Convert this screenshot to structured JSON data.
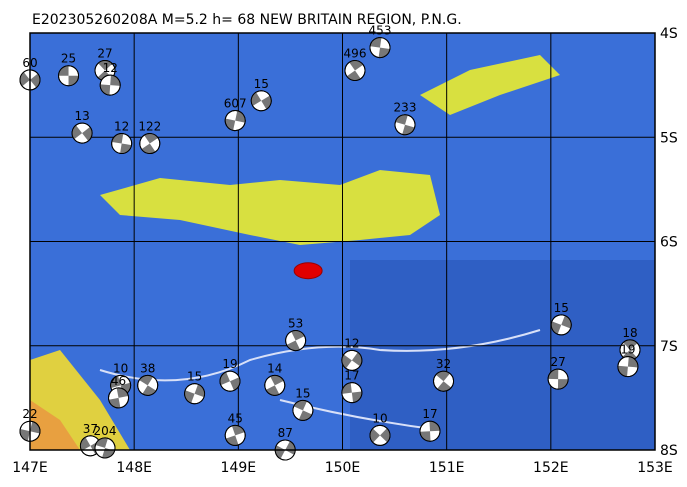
{
  "title": "E202305260208A  M=5.2  h= 68  NEW BRITAIN REGION, P.N.G.",
  "lon_ticks": [
    {
      "value": 147,
      "label": "147E"
    },
    {
      "value": 148,
      "label": "148E"
    },
    {
      "value": 149,
      "label": "149E"
    },
    {
      "value": 150,
      "label": "150E"
    },
    {
      "value": 151,
      "label": "151E"
    },
    {
      "value": 152,
      "label": "152E"
    },
    {
      "value": 153,
      "label": "153E"
    }
  ],
  "lat_ticks": [
    {
      "value": 4,
      "label": "4S"
    },
    {
      "value": 5,
      "label": "5S"
    },
    {
      "value": 6,
      "label": "6S"
    },
    {
      "value": 7,
      "label": "7S"
    },
    {
      "value": 8,
      "label": "8S"
    }
  ],
  "main_event": {
    "lon": 149.67,
    "lat": 6.28
  },
  "events": [
    {
      "lon": 147.37,
      "lat": 4.41,
      "label": "25"
    },
    {
      "lon": 147.72,
      "lat": 4.36,
      "label": "27"
    },
    {
      "lon": 147.77,
      "lat": 4.5,
      "label": "12"
    },
    {
      "lon": 147.0,
      "lat": 4.45,
      "label": "60"
    },
    {
      "lon": 150.36,
      "lat": 4.14,
      "label": "453"
    },
    {
      "lon": 150.12,
      "lat": 4.36,
      "label": "496"
    },
    {
      "lon": 148.97,
      "lat": 4.84,
      "label": "607"
    },
    {
      "lon": 149.22,
      "lat": 4.65,
      "label": "15"
    },
    {
      "lon": 150.6,
      "lat": 4.88,
      "label": "233"
    },
    {
      "lon": 149.35,
      "lat": 7.38,
      "label": "14"
    },
    {
      "lon": 148.58,
      "lat": 7.46,
      "label": "15"
    },
    {
      "lon": 148.92,
      "lat": 7.34,
      "label": "19"
    },
    {
      "lon": 149.62,
      "lat": 7.62,
      "label": "15"
    },
    {
      "lon": 148.97,
      "lat": 7.86,
      "label": "45"
    },
    {
      "lon": 149.45,
      "lat": 8.0,
      "label": "87"
    },
    {
      "lon": 147.87,
      "lat": 7.38,
      "label": "10"
    },
    {
      "lon": 148.13,
      "lat": 7.38,
      "label": "38"
    },
    {
      "lon": 147.85,
      "lat": 7.5,
      "label": "46"
    },
    {
      "lon": 150.09,
      "lat": 7.14,
      "label": "12"
    },
    {
      "lon": 150.09,
      "lat": 7.45,
      "label": "17"
    },
    {
      "lon": 150.97,
      "lat": 7.34,
      "label": "32"
    },
    {
      "lon": 150.84,
      "lat": 7.82,
      "label": "17"
    },
    {
      "lon": 150.36,
      "lat": 7.86,
      "label": "10"
    },
    {
      "lon": 152.07,
      "lat": 7.32,
      "label": "27"
    },
    {
      "lon": 152.76,
      "lat": 7.04,
      "label": "18"
    },
    {
      "lon": 152.74,
      "lat": 7.2,
      "label": "19"
    },
    {
      "lon": 147.5,
      "lat": 4.96,
      "label": "13"
    },
    {
      "lon": 147.88,
      "lat": 5.06,
      "label": "12"
    },
    {
      "lon": 148.15,
      "lat": 5.06,
      "label": "122"
    },
    {
      "lon": 147.0,
      "lat": 7.82,
      "label": "22"
    },
    {
      "lon": 147.58,
      "lat": 7.96,
      "label": "37"
    },
    {
      "lon": 147.72,
      "lat": 7.98,
      "label": "204"
    },
    {
      "lon": 149.55,
      "lat": 6.95,
      "label": "53"
    },
    {
      "lon": 152.1,
      "lat": 6.8,
      "label": "15"
    }
  ]
}
